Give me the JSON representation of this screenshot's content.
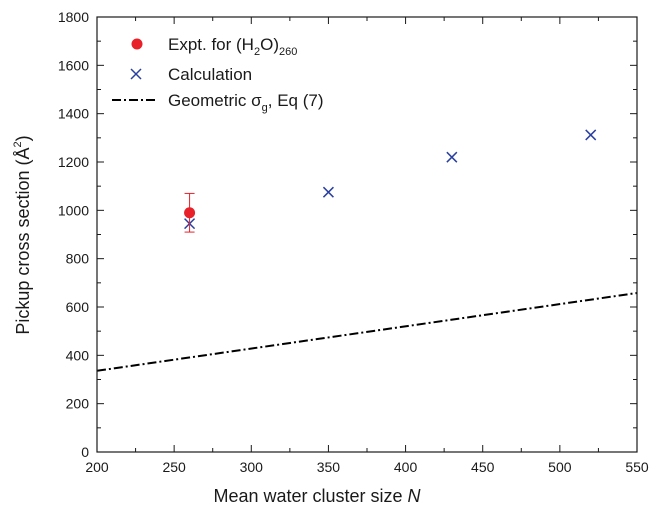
{
  "chart_data": {
    "type": "scatter",
    "xlabel": "Mean water cluster size ",
    "xlabel_symbol": "N",
    "ylabel": "Pickup cross section (Å",
    "ylabel_sup": "2",
    "ylabel_close": ")",
    "xlim": [
      200,
      550
    ],
    "ylim": [
      0,
      1800
    ],
    "x_ticks": [
      200,
      250,
      300,
      350,
      400,
      450,
      500,
      550
    ],
    "y_ticks": [
      0,
      200,
      400,
      600,
      800,
      1000,
      1200,
      1400,
      1600,
      1800
    ],
    "grid": false,
    "legend_position": "top-left",
    "series": [
      {
        "name": "Expt. for (H2O)260",
        "marker": "circle",
        "color": "#e8202a",
        "points": [
          {
            "x": 260,
            "y": 990,
            "err_low": 80,
            "err_high": 80
          }
        ]
      },
      {
        "name": "Calculation",
        "marker": "x",
        "color": "#2a3f9f",
        "points": [
          {
            "x": 260,
            "y": 945
          },
          {
            "x": 350,
            "y": 1075
          },
          {
            "x": 430,
            "y": 1220
          },
          {
            "x": 520,
            "y": 1312
          }
        ]
      },
      {
        "name": "Geometric σg, Eq (7)",
        "line": "dash-dot",
        "color": "#000000",
        "points": [
          {
            "x": 200,
            "y": 336
          },
          {
            "x": 550,
            "y": 658
          }
        ]
      }
    ],
    "legend": {
      "expt_label": "Expt. for (H",
      "expt_sub1": "2",
      "expt_mid": "O)",
      "expt_sub2": "260",
      "calc_label": "Calculation",
      "geo_label_a": "Geometric σ",
      "geo_sub": "g",
      "geo_label_b": ", Eq (7)"
    }
  }
}
